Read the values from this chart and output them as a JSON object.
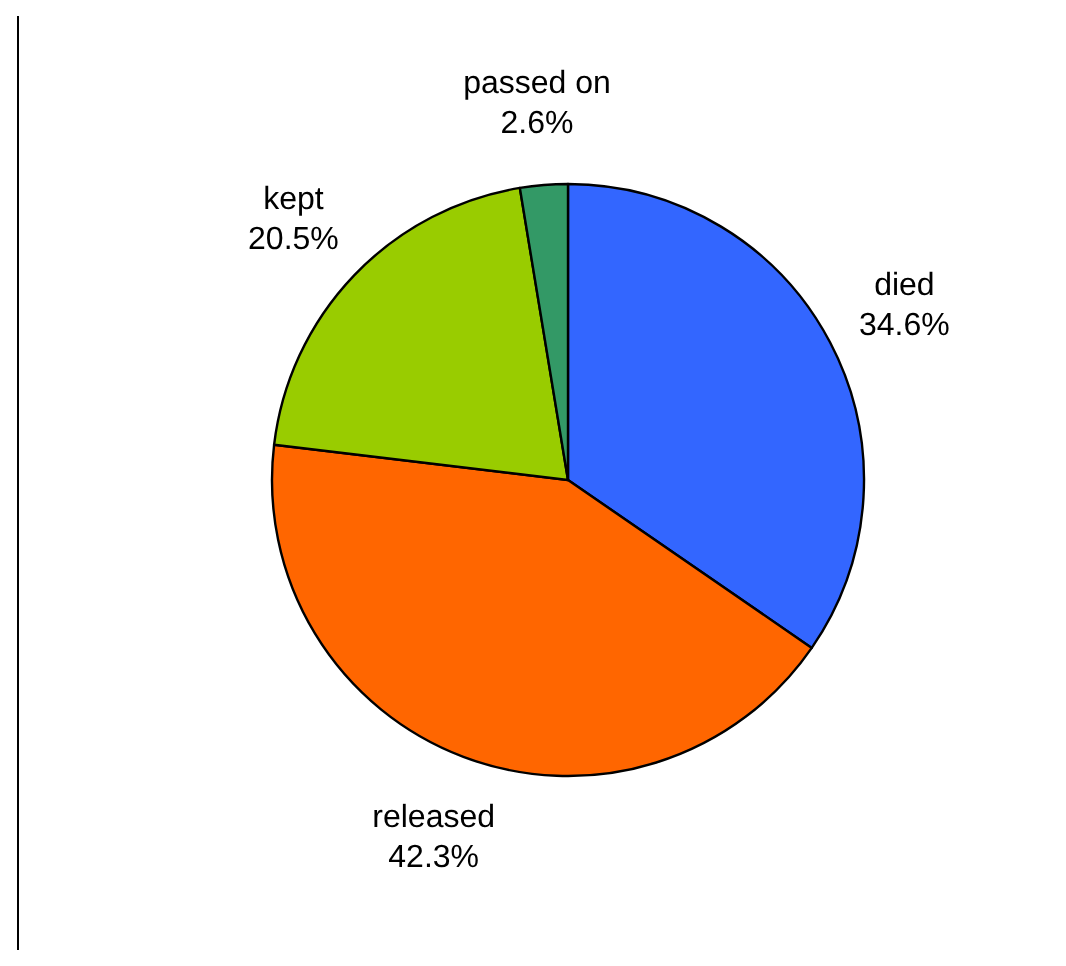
{
  "chart_data": {
    "type": "pie",
    "categories": [
      "died",
      "released",
      "kept",
      "passed on"
    ],
    "values": [
      34.6,
      42.3,
      20.5,
      2.6
    ],
    "colors": [
      "#3366ff",
      "#ff6600",
      "#99cc00",
      "#339966"
    ],
    "value_labels": [
      "34.6%",
      "42.3%",
      "20.5%",
      "2.6%"
    ]
  }
}
